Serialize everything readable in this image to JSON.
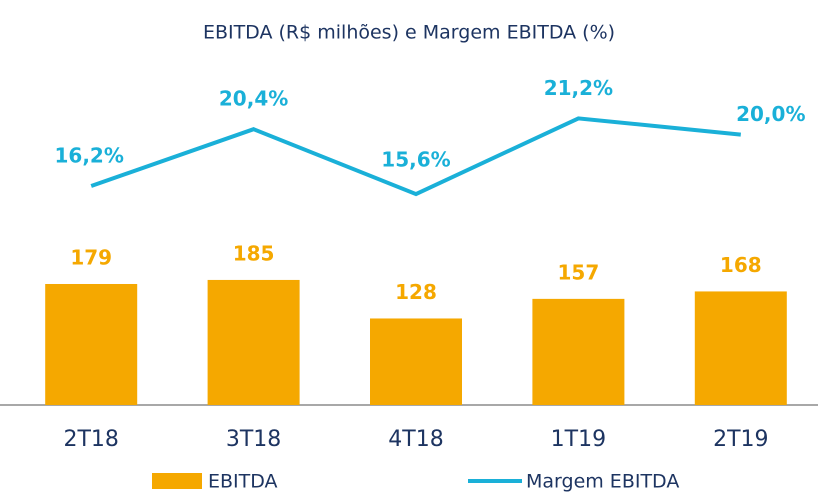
{
  "chart_data": {
    "type": "bar-line",
    "title": "EBITDA (R$ milhões) e Margem EBITDA (%)",
    "categories": [
      "2T18",
      "3T18",
      "4T18",
      "1T19",
      "2T19"
    ],
    "series": [
      {
        "name": "EBITDA",
        "type": "bar",
        "color": "#f5a800",
        "values": [
          179,
          185,
          128,
          157,
          168
        ]
      },
      {
        "name": "Margem EBITDA",
        "type": "line",
        "axis": "y2",
        "color": "#1ab0d8",
        "values": [
          16.2,
          20.4,
          15.6,
          21.2,
          20.0
        ],
        "value_labels": [
          "16,2%",
          "20,4%",
          "15,6%",
          "21,2%",
          "20,0%"
        ]
      }
    ],
    "ylim": [
      0,
      500
    ],
    "y2lim": [
      0,
      25
    ],
    "legend": "bottom"
  }
}
